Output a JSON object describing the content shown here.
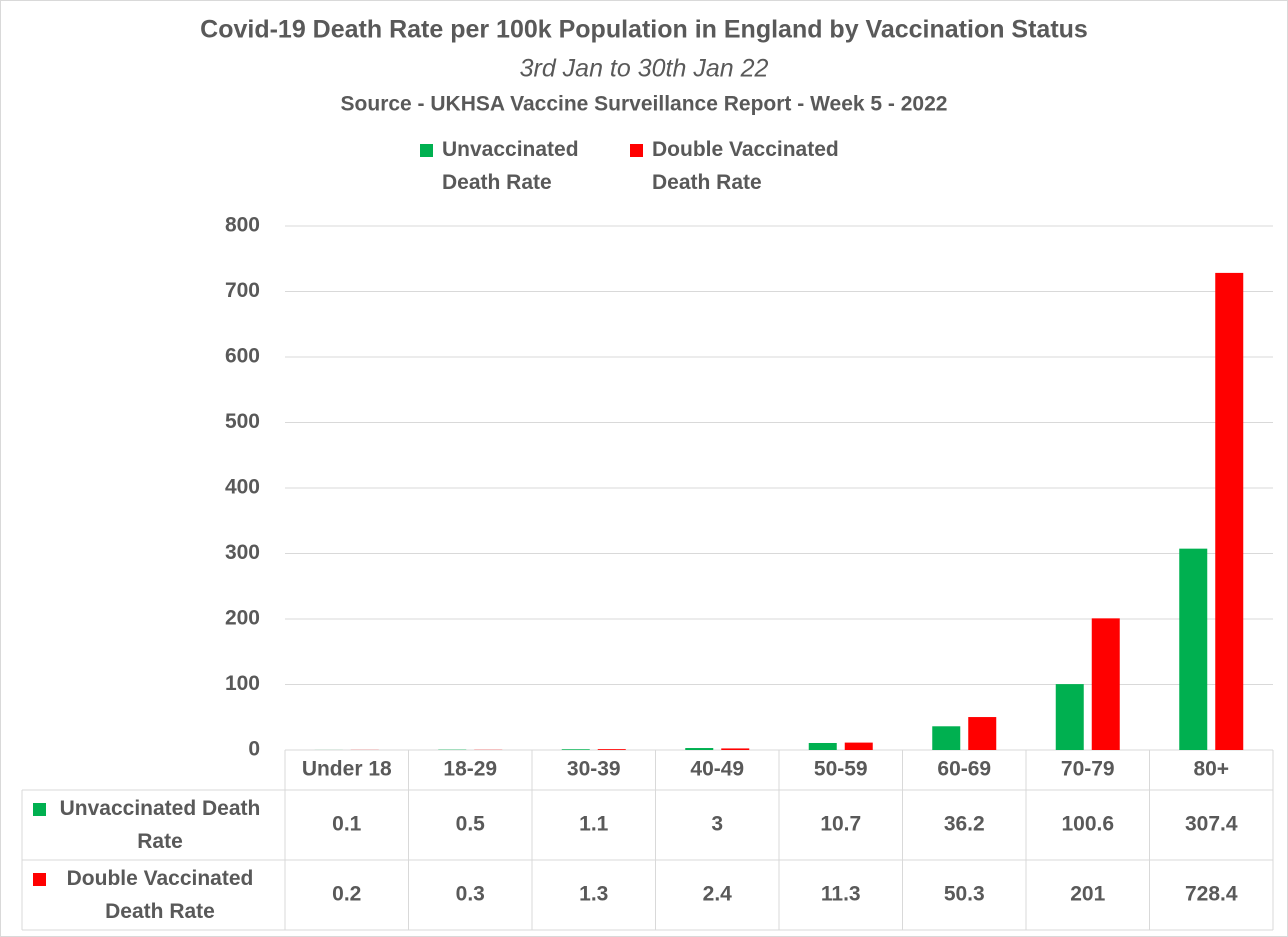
{
  "chart_data": {
    "type": "bar",
    "title": "Covid-19 Death Rate per 100k Population in England by Vaccination Status",
    "subtitle": "3rd Jan to 30th Jan 22",
    "source": "Source - UKHSA Vaccine Surveillance Report - Week 5 - 2022",
    "categories": [
      "Under 18",
      "18-29",
      "30-39",
      "40-49",
      "50-59",
      "60-69",
      "70-79",
      "80+"
    ],
    "series": [
      {
        "name": "Unvaccinated Death Rate",
        "color": "#00b050",
        "values": [
          0.1,
          0.5,
          1.1,
          3,
          10.7,
          36.2,
          100.6,
          307.4
        ]
      },
      {
        "name": "Double Vaccinated Death Rate",
        "color": "#ff0000",
        "values": [
          0.2,
          0.3,
          1.3,
          2.4,
          11.3,
          50.3,
          201,
          728.4
        ]
      }
    ],
    "ylim": [
      0,
      800
    ],
    "yticks": [
      0,
      100,
      200,
      300,
      400,
      500,
      600,
      700,
      800
    ],
    "grid": true,
    "data_table": true
  }
}
